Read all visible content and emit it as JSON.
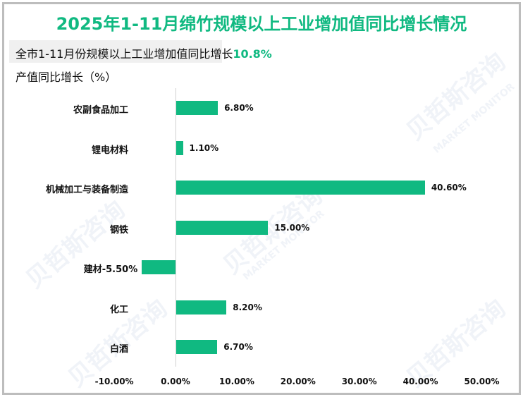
{
  "title": "2025年1-11月绵竹规模以上工业增加值同比增长情况",
  "subtitle": {
    "text": "全市1-11月份规模以上工业增加值同比增长",
    "highlight": "10.8%"
  },
  "ylabel": "产值同比增长（%）",
  "watermark": {
    "cn": "贝哲斯咨询",
    "en": "MARKET MONITOR"
  },
  "colors": {
    "bar": "#10b981",
    "title": "#10b981",
    "axis": "#d0d0d0",
    "border": "#bdbdbd"
  },
  "chart_data": {
    "type": "bar",
    "orientation": "horizontal",
    "title": "2025年1-11月绵竹规模以上工业增加值同比增长情况",
    "subtitle": "全市1-11月份规模以上工业增加值同比增长10.8%",
    "xlabel": "",
    "ylabel": "产值同比增长（%）",
    "categories": [
      "农副食品加工",
      "锂电材料",
      "机械加工与装备制造",
      "钢铁",
      "建材",
      "化工",
      "白酒"
    ],
    "values": [
      6.8,
      1.1,
      40.6,
      15.0,
      -5.5,
      8.2,
      6.7
    ],
    "value_labels": [
      "6.80%",
      "1.10%",
      "40.60%",
      "15.00%",
      "-5.50%",
      "8.20%",
      "6.70%"
    ],
    "xlim": [
      -10,
      50
    ],
    "xticks": [
      "-10.00%",
      "0.00%",
      "10.00%",
      "20.00%",
      "30.00%",
      "40.00%",
      "50.00%"
    ],
    "grid": false,
    "legend": "none"
  }
}
